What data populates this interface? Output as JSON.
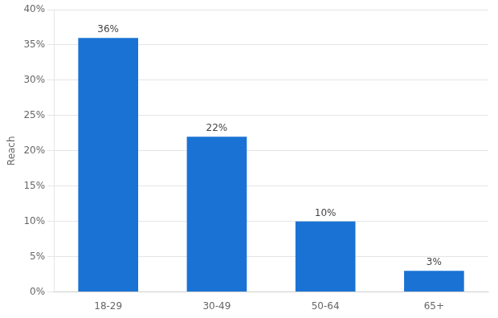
{
  "chart_data": {
    "type": "bar",
    "categories": [
      "18-29",
      "30-49",
      "50-64",
      "65+"
    ],
    "values": [
      36,
      22,
      10,
      3
    ],
    "value_labels": [
      "36%",
      "22%",
      "10%",
      "3%"
    ],
    "data_labels": true,
    "color": "#1a73d4",
    "ylabel": "Reach",
    "ylim": [
      0,
      40
    ],
    "yticks": [
      {
        "value": 0,
        "label": "0%"
      },
      {
        "value": 5,
        "label": "5%"
      },
      {
        "value": 10,
        "label": "10%"
      },
      {
        "value": 15,
        "label": "15%"
      },
      {
        "value": 20,
        "label": "20%"
      },
      {
        "value": 25,
        "label": "25%"
      },
      {
        "value": 30,
        "label": "30%"
      },
      {
        "value": 35,
        "label": "35%"
      },
      {
        "value": 40,
        "label": "40%"
      }
    ],
    "grid": true
  }
}
